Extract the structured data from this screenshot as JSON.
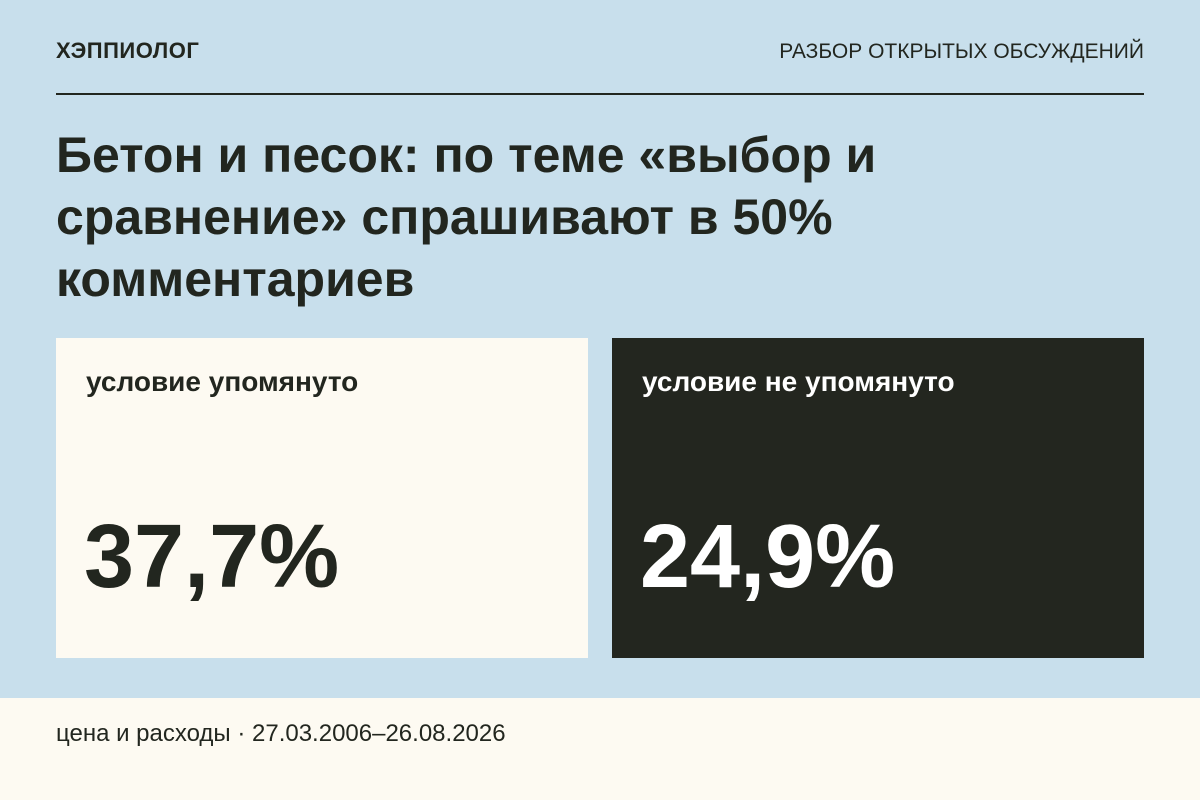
{
  "header": {
    "brand": "ХЭППИОЛОГ",
    "section": "РАЗБОР ОТКРЫТЫХ ОБСУЖДЕНИЙ"
  },
  "title": "Бетон и песок: по теме «выбор и сравнение» спрашивают в 50% комментариев",
  "cards": [
    {
      "label": "условие упомянуто",
      "value": "37,7%"
    },
    {
      "label": "условие не упомянуто",
      "value": "24,9%"
    }
  ],
  "footer": "цена и расходы · 27.03.2006–26.08.2026"
}
